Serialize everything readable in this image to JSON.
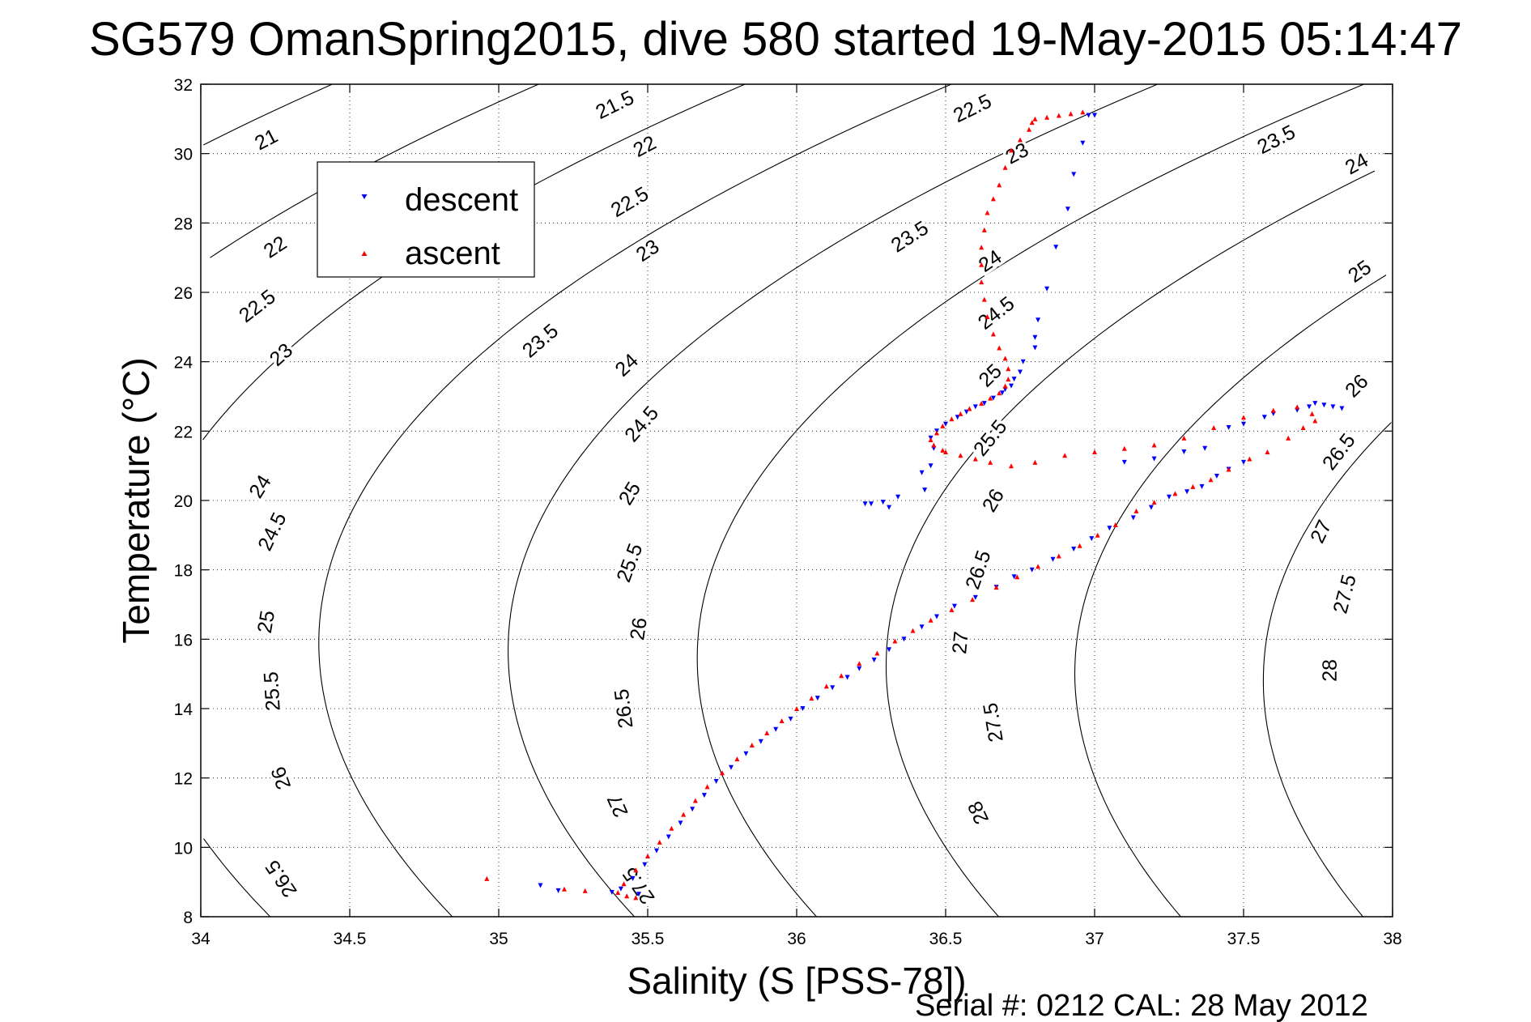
{
  "chart_data": {
    "type": "scatter",
    "title": "SG579 OmanSpring2015, dive 580 started 19-May-2015 05:14:47",
    "xlabel": "Salinity (S [PSS-78])",
    "ylabel": "Temperature (°C)",
    "footer": "Serial #: 0212  CAL: 28 May 2012",
    "xlim": [
      34,
      38
    ],
    "ylim": [
      8,
      32
    ],
    "xticks": [
      "34",
      "34.5",
      "35",
      "35.5",
      "36",
      "36.5",
      "37",
      "37.5",
      "38"
    ],
    "yticks": [
      "8",
      "10",
      "12",
      "14",
      "16",
      "18",
      "20",
      "22",
      "24",
      "26",
      "28",
      "30",
      "32"
    ],
    "grid": true,
    "legend_position": "upper-left",
    "contours": {
      "levels": [
        21,
        21.5,
        22,
        22.5,
        23,
        23.5,
        24,
        24.5,
        25,
        25.5,
        26,
        26.5,
        27,
        27.5,
        28
      ],
      "labels": [
        {
          "text": "21",
          "s": 34.22,
          "t": 30.4
        },
        {
          "text": "21.5",
          "s": 35.39,
          "t": 31.4
        },
        {
          "text": "22",
          "s": 34.25,
          "t": 27.3
        },
        {
          "text": "22",
          "s": 35.49,
          "t": 30.2
        },
        {
          "text": "22.5",
          "s": 34.19,
          "t": 25.6
        },
        {
          "text": "22.5",
          "s": 35.44,
          "t": 28.6
        },
        {
          "text": "22.5",
          "s": 36.59,
          "t": 31.3
        },
        {
          "text": "23",
          "s": 34.27,
          "t": 24.2
        },
        {
          "text": "23",
          "s": 35.5,
          "t": 27.2
        },
        {
          "text": "23",
          "s": 36.74,
          "t": 30.0
        },
        {
          "text": "23.5",
          "s": 35.14,
          "t": 24.6
        },
        {
          "text": "23.5",
          "s": 36.38,
          "t": 27.6
        },
        {
          "text": "23.5",
          "s": 37.61,
          "t": 30.4
        },
        {
          "text": "24",
          "s": 34.2,
          "t": 20.4
        },
        {
          "text": "24",
          "s": 35.43,
          "t": 23.9
        },
        {
          "text": "24",
          "s": 36.65,
          "t": 26.9
        },
        {
          "text": "24",
          "s": 37.88,
          "t": 29.7
        },
        {
          "text": "24.5",
          "s": 34.24,
          "t": 19.1
        },
        {
          "text": "24.5",
          "s": 35.48,
          "t": 22.2
        },
        {
          "text": "24.5",
          "s": 36.67,
          "t": 25.4
        },
        {
          "text": "25",
          "s": 34.22,
          "t": 16.5
        },
        {
          "text": "25",
          "s": 35.44,
          "t": 20.2
        },
        {
          "text": "25",
          "s": 36.65,
          "t": 23.6
        },
        {
          "text": "25",
          "s": 37.89,
          "t": 26.6
        },
        {
          "text": "25.5",
          "s": 34.24,
          "t": 14.5
        },
        {
          "text": "25.5",
          "s": 35.44,
          "t": 18.2
        },
        {
          "text": "25.5",
          "s": 36.65,
          "t": 21.8
        },
        {
          "text": "26",
          "s": 34.27,
          "t": 12.0
        },
        {
          "text": "26",
          "s": 35.47,
          "t": 16.3
        },
        {
          "text": "26",
          "s": 36.66,
          "t": 20.0
        },
        {
          "text": "26",
          "s": 37.88,
          "t": 23.3
        },
        {
          "text": "26.5",
          "s": 34.27,
          "t": 9.1
        },
        {
          "text": "26.5",
          "s": 35.42,
          "t": 14.0
        },
        {
          "text": "26.5",
          "s": 36.61,
          "t": 18.0
        },
        {
          "text": "26.5",
          "s": 37.82,
          "t": 21.4
        },
        {
          "text": "27",
          "s": 35.4,
          "t": 11.2
        },
        {
          "text": "27",
          "s": 36.55,
          "t": 15.9
        },
        {
          "text": "27",
          "s": 37.76,
          "t": 19.1
        },
        {
          "text": "27.5",
          "s": 35.47,
          "t": 8.9
        },
        {
          "text": "27.5",
          "s": 36.66,
          "t": 13.6
        },
        {
          "text": "27.5",
          "s": 37.84,
          "t": 17.3
        },
        {
          "text": "28",
          "s": 36.61,
          "t": 11.0
        },
        {
          "text": "28",
          "s": 37.79,
          "t": 15.1
        }
      ]
    },
    "series": [
      {
        "name": "descent",
        "color": "#0000ff",
        "marker": "triangle-down",
        "points": [
          [
            37.0,
            31.1
          ],
          [
            36.98,
            31.1
          ],
          [
            36.96,
            30.3
          ],
          [
            36.93,
            29.4
          ],
          [
            36.91,
            28.4
          ],
          [
            36.87,
            27.3
          ],
          [
            36.84,
            26.1
          ],
          [
            36.81,
            25.2
          ],
          [
            36.8,
            24.7
          ],
          [
            36.8,
            24.4
          ],
          [
            36.76,
            24.0
          ],
          [
            36.75,
            23.7
          ],
          [
            36.73,
            23.5
          ],
          [
            36.72,
            23.3
          ],
          [
            36.7,
            23.2
          ],
          [
            36.69,
            23.1
          ],
          [
            36.66,
            22.95
          ],
          [
            36.63,
            22.8
          ],
          [
            36.6,
            22.7
          ],
          [
            36.57,
            22.55
          ],
          [
            36.54,
            22.4
          ],
          [
            36.5,
            22.2
          ],
          [
            36.47,
            22.0
          ],
          [
            36.45,
            21.8
          ],
          [
            36.46,
            21.5
          ],
          [
            36.45,
            21.0
          ],
          [
            36.42,
            20.8
          ],
          [
            36.43,
            20.3
          ],
          [
            36.34,
            20.1
          ],
          [
            36.29,
            19.95
          ],
          [
            36.31,
            19.8
          ],
          [
            36.25,
            19.9
          ],
          [
            36.23,
            19.9
          ],
          [
            37.83,
            22.65
          ],
          [
            37.8,
            22.7
          ],
          [
            37.77,
            22.75
          ],
          [
            37.74,
            22.8
          ],
          [
            37.72,
            22.7
          ],
          [
            37.68,
            22.6
          ],
          [
            37.6,
            22.5
          ],
          [
            37.57,
            22.4
          ],
          [
            37.5,
            22.2
          ],
          [
            37.45,
            22.1
          ],
          [
            37.37,
            21.5
          ],
          [
            37.3,
            21.4
          ],
          [
            37.2,
            21.2
          ],
          [
            37.1,
            21.1
          ],
          [
            37.5,
            21.1
          ],
          [
            37.45,
            20.9
          ],
          [
            37.41,
            20.7
          ],
          [
            37.36,
            20.4
          ],
          [
            37.31,
            20.25
          ],
          [
            37.25,
            20.1
          ],
          [
            37.19,
            19.8
          ],
          [
            37.13,
            19.5
          ],
          [
            37.05,
            19.2
          ],
          [
            36.99,
            18.9
          ],
          [
            36.93,
            18.6
          ],
          [
            36.86,
            18.3
          ],
          [
            36.79,
            18.0
          ],
          [
            36.73,
            17.8
          ],
          [
            36.67,
            17.5
          ],
          [
            36.6,
            17.2
          ],
          [
            36.53,
            16.95
          ],
          [
            36.47,
            16.65
          ],
          [
            36.42,
            16.35
          ],
          [
            36.36,
            16.0
          ],
          [
            36.31,
            15.7
          ],
          [
            36.26,
            15.4
          ],
          [
            36.21,
            15.15
          ],
          [
            36.17,
            14.9
          ],
          [
            36.12,
            14.6
          ],
          [
            36.07,
            14.3
          ],
          [
            36.02,
            14.0
          ],
          [
            35.98,
            13.7
          ],
          [
            35.93,
            13.4
          ],
          [
            35.88,
            13.05
          ],
          [
            35.83,
            12.7
          ],
          [
            35.78,
            12.3
          ],
          [
            35.73,
            11.9
          ],
          [
            35.69,
            11.5
          ],
          [
            35.65,
            11.1
          ],
          [
            35.61,
            10.7
          ],
          [
            35.57,
            10.3
          ],
          [
            35.53,
            9.9
          ],
          [
            35.49,
            9.5
          ],
          [
            35.45,
            9.1
          ],
          [
            35.41,
            8.8
          ],
          [
            35.38,
            8.7
          ],
          [
            35.47,
            8.65
          ],
          [
            35.14,
            8.9
          ],
          [
            35.2,
            8.75
          ]
        ]
      },
      {
        "name": "ascent",
        "color": "#ff0000",
        "marker": "triangle-up",
        "points": [
          [
            36.96,
            31.2
          ],
          [
            36.92,
            31.15
          ],
          [
            36.88,
            31.1
          ],
          [
            36.84,
            31.05
          ],
          [
            36.8,
            31.0
          ],
          [
            36.79,
            30.9
          ],
          [
            36.78,
            30.7
          ],
          [
            36.75,
            30.4
          ],
          [
            36.72,
            30.1
          ],
          [
            36.7,
            29.6
          ],
          [
            36.68,
            29.1
          ],
          [
            36.66,
            28.7
          ],
          [
            36.64,
            28.3
          ],
          [
            36.63,
            27.8
          ],
          [
            36.62,
            27.3
          ],
          [
            36.62,
            26.8
          ],
          [
            36.62,
            26.3
          ],
          [
            36.63,
            25.8
          ],
          [
            36.64,
            25.3
          ],
          [
            36.66,
            24.8
          ],
          [
            36.68,
            24.4
          ],
          [
            36.7,
            24.1
          ],
          [
            36.71,
            23.8
          ],
          [
            36.71,
            23.5
          ],
          [
            36.7,
            23.3
          ],
          [
            36.68,
            23.1
          ],
          [
            36.65,
            22.95
          ],
          [
            36.62,
            22.8
          ],
          [
            36.58,
            22.65
          ],
          [
            36.55,
            22.5
          ],
          [
            36.52,
            22.35
          ],
          [
            36.49,
            22.15
          ],
          [
            36.47,
            21.95
          ],
          [
            36.45,
            21.75
          ],
          [
            36.46,
            21.6
          ],
          [
            36.49,
            21.45
          ],
          [
            36.5,
            21.4
          ],
          [
            36.55,
            21.3
          ],
          [
            36.6,
            21.2
          ],
          [
            36.65,
            21.1
          ],
          [
            36.72,
            21.0
          ],
          [
            36.8,
            21.1
          ],
          [
            36.9,
            21.3
          ],
          [
            37.0,
            21.4
          ],
          [
            37.1,
            21.5
          ],
          [
            37.2,
            21.6
          ],
          [
            37.3,
            21.8
          ],
          [
            37.4,
            22.1
          ],
          [
            37.5,
            22.4
          ],
          [
            37.6,
            22.6
          ],
          [
            37.68,
            22.7
          ],
          [
            37.73,
            22.5
          ],
          [
            37.74,
            22.3
          ],
          [
            37.7,
            22.1
          ],
          [
            37.65,
            21.8
          ],
          [
            37.58,
            21.4
          ],
          [
            37.52,
            21.2
          ],
          [
            37.45,
            20.9
          ],
          [
            37.39,
            20.6
          ],
          [
            37.33,
            20.4
          ],
          [
            37.27,
            20.2
          ],
          [
            37.2,
            19.95
          ],
          [
            37.14,
            19.7
          ],
          [
            37.07,
            19.3
          ],
          [
            37.01,
            19.0
          ],
          [
            36.95,
            18.7
          ],
          [
            36.88,
            18.4
          ],
          [
            36.81,
            18.1
          ],
          [
            36.74,
            17.8
          ],
          [
            36.67,
            17.5
          ],
          [
            36.59,
            17.15
          ],
          [
            36.52,
            16.85
          ],
          [
            36.45,
            16.55
          ],
          [
            36.39,
            16.25
          ],
          [
            36.33,
            15.95
          ],
          [
            36.27,
            15.6
          ],
          [
            36.21,
            15.3
          ],
          [
            36.15,
            14.95
          ],
          [
            36.1,
            14.65
          ],
          [
            36.05,
            14.3
          ],
          [
            36.0,
            14.0
          ],
          [
            35.95,
            13.65
          ],
          [
            35.9,
            13.3
          ],
          [
            35.85,
            12.95
          ],
          [
            35.8,
            12.55
          ],
          [
            35.75,
            12.15
          ],
          [
            35.7,
            11.75
          ],
          [
            35.66,
            11.35
          ],
          [
            35.62,
            10.95
          ],
          [
            35.58,
            10.55
          ],
          [
            35.54,
            10.15
          ],
          [
            35.5,
            9.75
          ],
          [
            35.46,
            9.35
          ],
          [
            35.42,
            8.95
          ],
          [
            35.4,
            8.7
          ],
          [
            35.43,
            8.6
          ],
          [
            35.46,
            8.55
          ],
          [
            34.96,
            9.1
          ],
          [
            35.22,
            8.8
          ],
          [
            35.29,
            8.75
          ]
        ]
      }
    ]
  }
}
